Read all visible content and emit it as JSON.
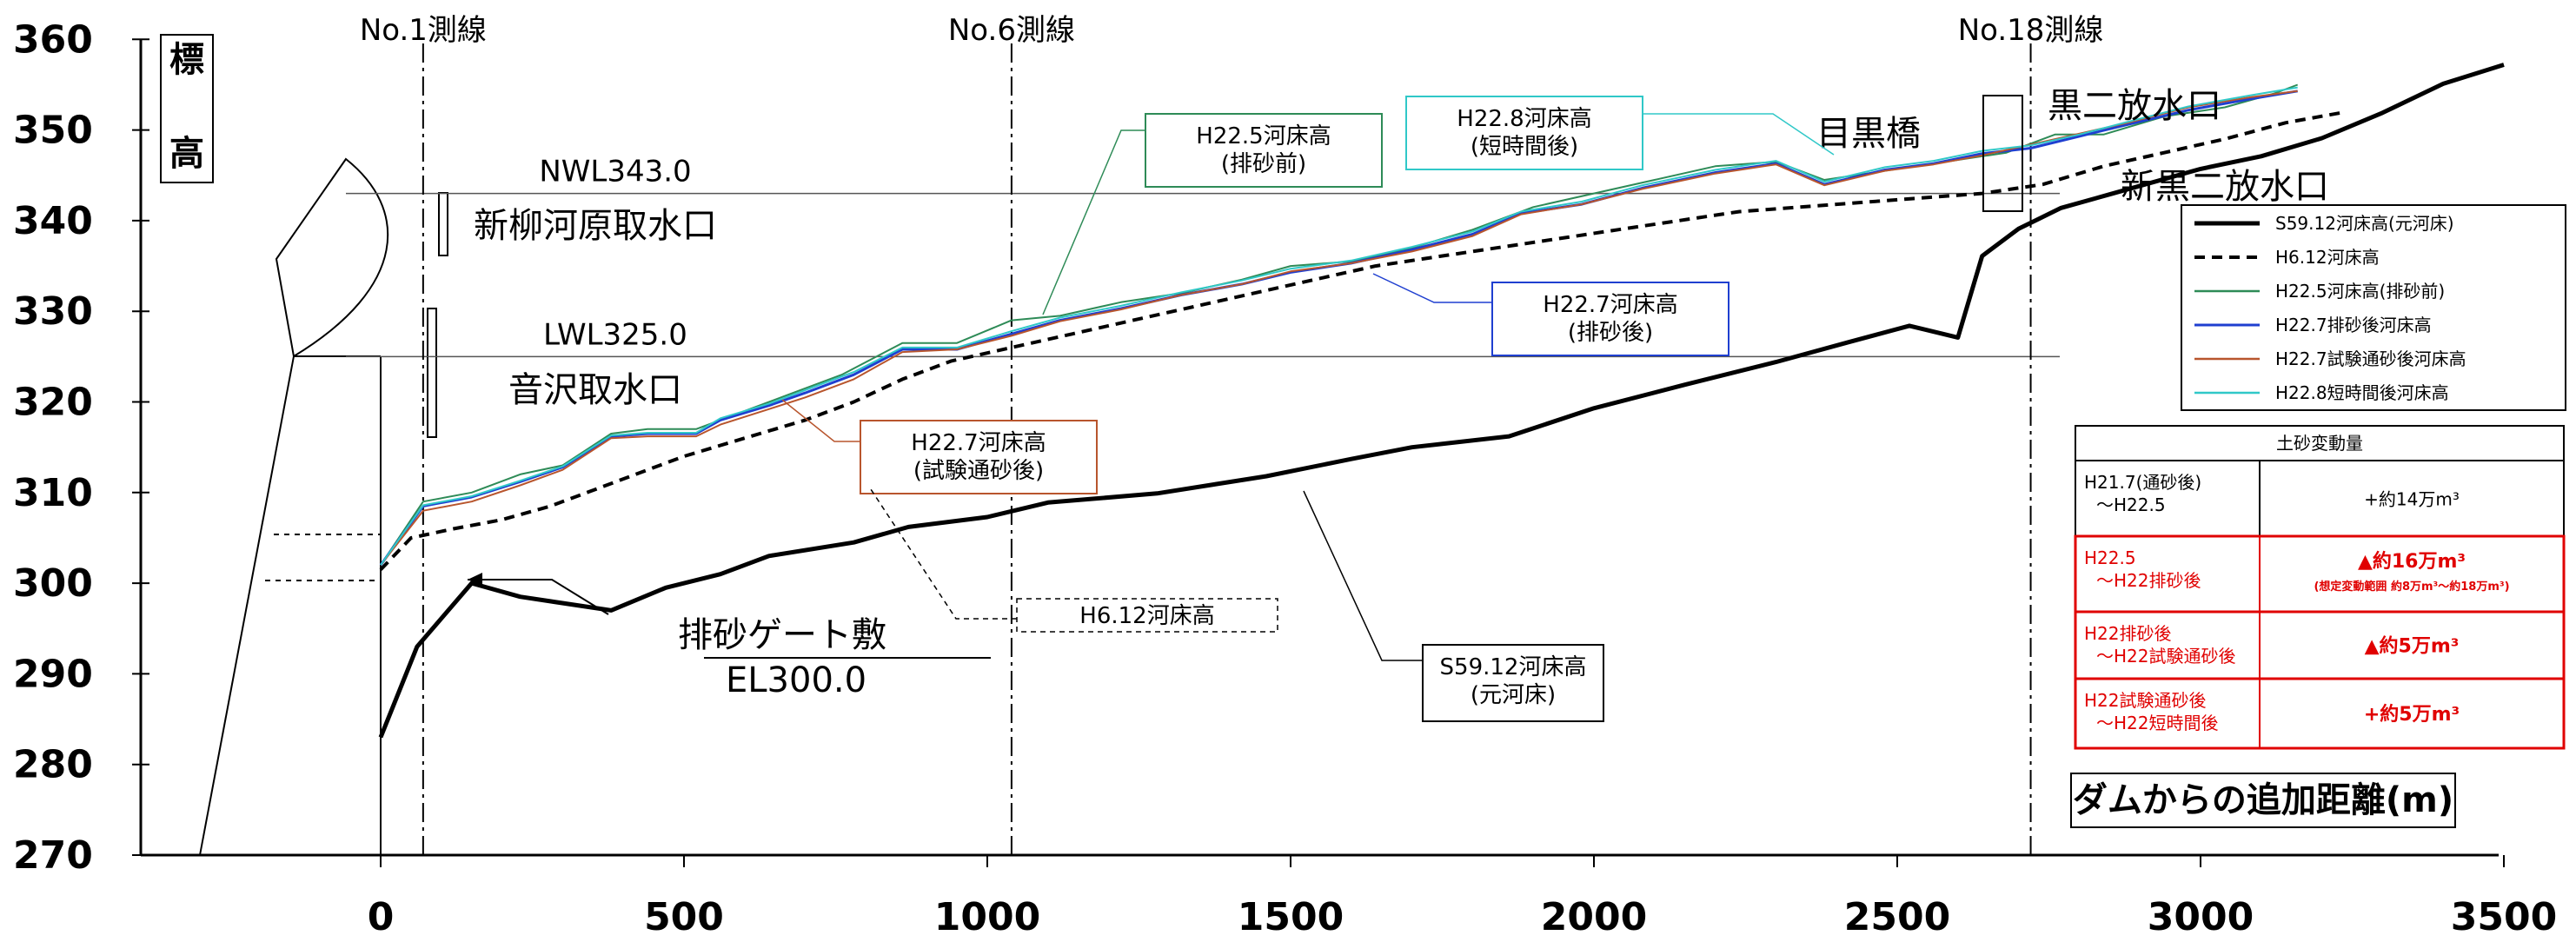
{
  "chart_data": {
    "type": "line",
    "xlabel": "ダムからの追加距離(m)",
    "ylabel": "標高",
    "xlim": [
      -400,
      3600
    ],
    "ylim": [
      270,
      360
    ],
    "xticks": [
      0,
      500,
      1000,
      1500,
      2000,
      2500,
      3000,
      3500
    ],
    "yticks": [
      270,
      280,
      290,
      300,
      310,
      320,
      330,
      340,
      350,
      360
    ],
    "grid": false,
    "legend_position": "right",
    "series": [
      {
        "name": "S59.12河床高(元河床)",
        "key": "s59",
        "color": "#000000",
        "dash": "none",
        "width": 5,
        "x": [
          0,
          60,
          150,
          230,
          380,
          470,
          560,
          640,
          780,
          870,
          1000,
          1100,
          1280,
          1460,
          1600,
          1700,
          1860,
          2000,
          2150,
          2300,
          2420,
          2520,
          2600,
          2640,
          2700,
          2770,
          2850,
          3000,
          3100,
          3200,
          3300,
          3400,
          3500
        ],
        "y": [
          283,
          293,
          300,
          298.5,
          297,
          299.5,
          301,
          303,
          304.5,
          306.2,
          307.3,
          308.9,
          309.9,
          311.8,
          313.7,
          315,
          316.2,
          319.3,
          321.9,
          324.4,
          326.6,
          328.4,
          327.1,
          336.1,
          339.1,
          341.4,
          342.9,
          345.7,
          347.1,
          349.1,
          351.9,
          355.1,
          357.2
        ]
      },
      {
        "name": "H6.12河床高",
        "key": "h6",
        "color": "#000000",
        "dash": "12,8",
        "width": 4,
        "x": [
          0,
          50,
          120,
          200,
          280,
          340,
          420,
          500,
          600,
          700,
          780,
          860,
          940,
          1040,
          1140,
          1240,
          1340,
          1440,
          1540,
          1640,
          1740,
          1840,
          1940,
          2040,
          2140,
          2240,
          2340,
          2440,
          2540,
          2640,
          2740,
          2840,
          2940,
          3040,
          3140,
          3240
        ],
        "y": [
          301.5,
          305,
          306,
          307,
          308.5,
          310,
          312,
          314,
          316,
          318,
          320,
          322.5,
          324.5,
          326,
          327.5,
          329,
          330.5,
          332,
          333.5,
          335,
          336,
          337,
          338,
          339,
          340,
          341,
          341.5,
          342,
          342.5,
          343,
          344,
          346,
          347.5,
          349,
          350.8,
          352
        ]
      },
      {
        "name": "H22.5河床高(排砂前)",
        "key": "h225",
        "color": "#2e8b57",
        "dash": "none",
        "width": 2,
        "x": [
          0,
          70,
          150,
          230,
          300,
          380,
          440,
          520,
          600,
          680,
          760,
          860,
          950,
          1040,
          1120,
          1220,
          1320,
          1420,
          1500,
          1600,
          1700,
          1800,
          1900,
          2000,
          2100,
          2200,
          2300,
          2380,
          2480,
          2580,
          2680,
          2760,
          2840,
          2940,
          3040,
          3120,
          3160
        ],
        "y": [
          302,
          309,
          310,
          312,
          313,
          316.5,
          317,
          317,
          319,
          321,
          323,
          326.5,
          326.5,
          329,
          329.5,
          331,
          332,
          333.5,
          335,
          335.5,
          337,
          339,
          341.5,
          343,
          344.5,
          346,
          346.5,
          344.5,
          345.5,
          346.5,
          347.5,
          349.5,
          349.5,
          351.5,
          352.5,
          354,
          355
        ]
      },
      {
        "name": "H22.7排砂後河床高",
        "key": "h227a",
        "color": "#1f3fd0",
        "dash": "none",
        "width": 3,
        "x": [
          0,
          70,
          150,
          230,
          300,
          380,
          440,
          520,
          560,
          640,
          700,
          780,
          860,
          950,
          1040,
          1120,
          1220,
          1320,
          1420,
          1500,
          1600,
          1700,
          1800,
          1880,
          1980,
          2080,
          2200,
          2300,
          2380,
          2480,
          2560,
          2640,
          2720,
          2800,
          2880,
          2980,
          3080,
          3160
        ],
        "y": [
          302,
          308.5,
          309.5,
          311.2,
          312.8,
          316.2,
          316.5,
          316.5,
          318,
          319.6,
          321,
          323,
          325.8,
          325.8,
          327.5,
          329,
          330.3,
          331.8,
          333,
          334.3,
          335.3,
          336.8,
          338.5,
          340.8,
          341.8,
          343.6,
          345.3,
          346.3,
          344,
          345.6,
          346.3,
          347.4,
          348,
          349.3,
          350.6,
          352.2,
          353.4,
          354.3
        ]
      },
      {
        "name": "H22.7試験通砂後河床高",
        "key": "h227b",
        "color": "#b8552d",
        "dash": "none",
        "width": 2,
        "x": [
          0,
          70,
          150,
          230,
          300,
          380,
          440,
          520,
          560,
          640,
          700,
          780,
          860,
          950,
          1040,
          1120,
          1220,
          1320,
          1420,
          1500,
          1600,
          1700,
          1800,
          1880,
          1980,
          2080,
          2200,
          2300,
          2380,
          2480,
          2560,
          2640,
          2720,
          2800,
          2880,
          2980,
          3080,
          3160
        ],
        "y": [
          302,
          308,
          309,
          310.8,
          312.5,
          316,
          316.2,
          316.2,
          317.5,
          319.2,
          320.5,
          322.5,
          325.5,
          325.8,
          327.3,
          328.9,
          330.2,
          331.8,
          333,
          334.4,
          335.3,
          336.6,
          338.3,
          340.7,
          341.8,
          343.5,
          345.2,
          346.2,
          343.9,
          345.5,
          346.2,
          347.2,
          348.4,
          349.6,
          350.8,
          352.5,
          353.6,
          354.3
        ]
      },
      {
        "name": "H22.8短時間後河床高",
        "key": "h228",
        "color": "#30c8c8",
        "dash": "none",
        "width": 2,
        "x": [
          0,
          70,
          150,
          230,
          300,
          380,
          440,
          520,
          560,
          640,
          700,
          780,
          860,
          950,
          1040,
          1120,
          1220,
          1320,
          1420,
          1500,
          1600,
          1700,
          1800,
          1880,
          1980,
          2080,
          2200,
          2300,
          2380,
          2480,
          2560,
          2640,
          2720,
          2800,
          2880,
          2980,
          3080,
          3160
        ],
        "y": [
          302,
          308.6,
          309.6,
          311.3,
          312.9,
          316.3,
          316.6,
          316.6,
          318.2,
          319.8,
          321.3,
          323.3,
          326,
          326,
          327.8,
          329.3,
          330.6,
          332.1,
          333.4,
          334.7,
          335.6,
          337.1,
          338.8,
          341,
          342.1,
          343.9,
          345.6,
          346.6,
          344.3,
          345.9,
          346.6,
          347.7,
          348.3,
          349.5,
          350.9,
          352.6,
          353.8,
          354.7
        ]
      }
    ],
    "survey_lines": [
      {
        "label": "No.1測線",
        "x": 70
      },
      {
        "label": "No.6測線",
        "x": 1040
      },
      {
        "label": "No.18測線",
        "x": 2720
      }
    ],
    "water_levels": [
      {
        "label": "NWL343.0",
        "y": 343
      },
      {
        "label": "LWL325.0",
        "y": 325
      }
    ],
    "annotations": {
      "intake1": "新柳河原取水口",
      "intake2": "音沢取水口",
      "gate": "排砂ゲート敷",
      "gate_el": "EL300.0",
      "bridge": "目黒橋",
      "outlet1": "黒二放水口",
      "outlet2": "新黒二放水口",
      "callout_h225": [
        "H22.5河床高",
        "(排砂前)"
      ],
      "callout_h228": [
        "H22.8河床高",
        "(短時間後)"
      ],
      "callout_h227a": [
        "H22.7河床高",
        "(排砂後)"
      ],
      "callout_h227b": [
        "H22.7河床高",
        "(試験通砂後)"
      ],
      "callout_h6": "H6.12河床高",
      "callout_s59": [
        "S59.12河床高",
        "(元河床)"
      ]
    },
    "sediment_table": {
      "title": "土砂変動量",
      "rows": [
        {
          "period": [
            "H21.7(通砂後)",
            "〜H22.5"
          ],
          "amount": "+約14万m³",
          "note": "",
          "color": "#000000"
        },
        {
          "period": [
            "H22.5",
            "〜H22排砂後"
          ],
          "amount": "▲約16万m³",
          "note": "(想定変動範囲 約8万m³〜約18万m³)",
          "color": "#e00000"
        },
        {
          "period": [
            "H22排砂後",
            "〜H22試験通砂後"
          ],
          "amount": "▲約5万m³",
          "note": "",
          "color": "#e00000"
        },
        {
          "period": [
            "H22試験通砂後",
            "〜H22短時間後"
          ],
          "amount": "+約5万m³",
          "note": "",
          "color": "#e00000"
        }
      ]
    }
  }
}
